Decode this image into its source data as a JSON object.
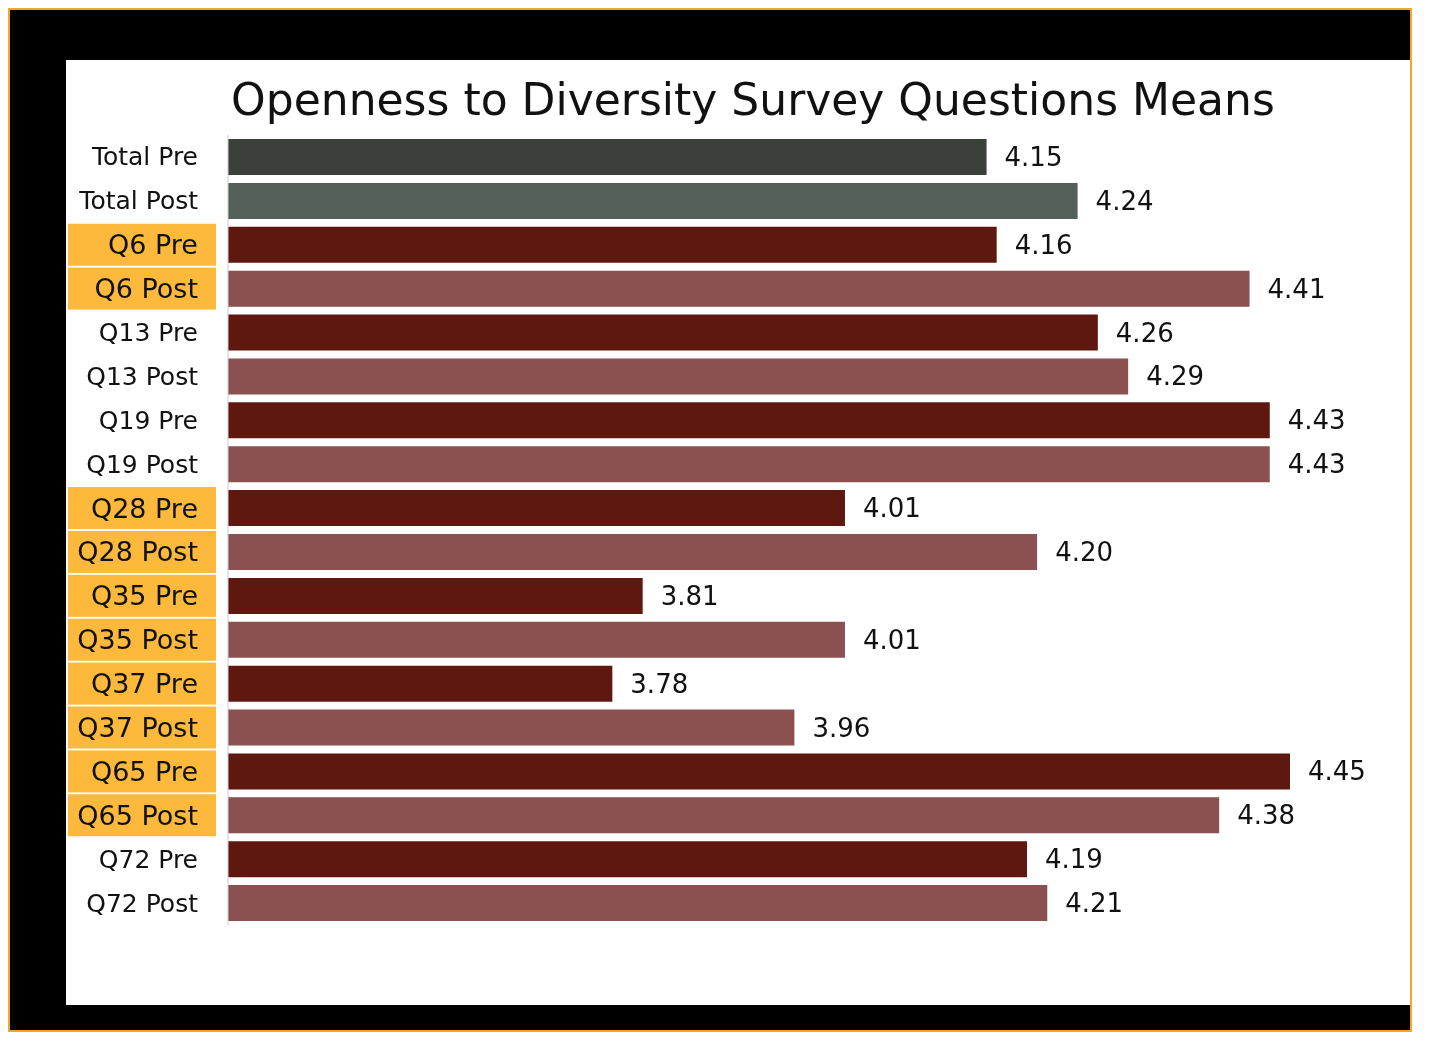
{
  "chart_data": {
    "type": "bar",
    "orientation": "horizontal",
    "title": "Openness to Diversity Survey Questions Means",
    "categories": [
      "Total Pre",
      "Total Post",
      "Q6 Pre",
      "Q6 Post",
      "Q13 Pre",
      "Q13 Post",
      "Q19 Pre",
      "Q19 Post",
      "Q28 Pre",
      "Q28 Post",
      "Q35 Pre",
      "Q35 Post",
      "Q37 Pre",
      "Q37 Post",
      "Q65 Pre",
      "Q65 Post",
      "Q72 Pre",
      "Q72 Post"
    ],
    "values": [
      4.15,
      4.24,
      4.16,
      4.41,
      4.26,
      4.29,
      4.43,
      4.43,
      4.01,
      4.2,
      3.81,
      4.01,
      3.78,
      3.96,
      4.45,
      4.38,
      4.19,
      4.21
    ],
    "value_labels": [
      "4.15",
      "4.24",
      "4.16",
      "4.41",
      "4.26",
      "4.29",
      "4.43",
      "4.43",
      "4.01",
      "4.20",
      "3.81",
      "4.01",
      "3.78",
      "3.96",
      "4.45",
      "4.38",
      "4.19",
      "4.21"
    ],
    "colors": [
      "#3b403b",
      "#55605a",
      "#5e1810",
      "#8b5151",
      "#5e1810",
      "#8b5151",
      "#5e1810",
      "#8b5151",
      "#5e1810",
      "#8b5151",
      "#5e1810",
      "#8b5151",
      "#5e1810",
      "#8b5151",
      "#5e1810",
      "#8b5151",
      "#5e1810",
      "#8b5151"
    ],
    "xlim": [
      3.4,
      4.45
    ],
    "tick_labels": "y"
  }
}
